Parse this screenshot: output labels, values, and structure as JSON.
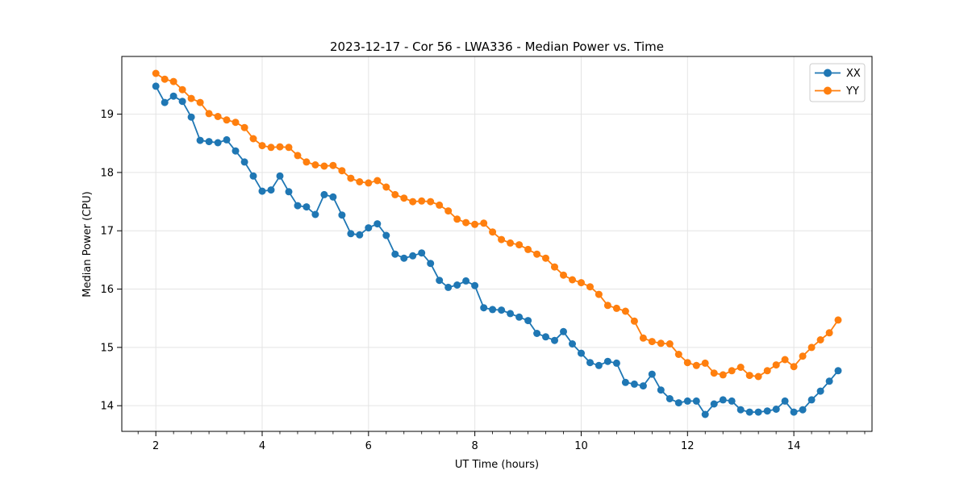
{
  "chart_data": {
    "type": "line",
    "title": "2023-12-17 - Cor 56 - LWA336 - Median Power vs. Time",
    "xlabel": "UT Time (hours)",
    "ylabel": "Median Power (CPU)",
    "xlim": [
      1.36,
      15.47
    ],
    "ylim": [
      13.56,
      19.99
    ],
    "xticks": [
      2,
      4,
      6,
      8,
      10,
      12,
      14
    ],
    "yticks": [
      14,
      15,
      16,
      17,
      18,
      19
    ],
    "x_minor_step": 0.33333,
    "grid": true,
    "grid_color": "#e4e4e4",
    "legend_position": "upper right",
    "x": [
      2.0,
      2.167,
      2.333,
      2.5,
      2.667,
      2.833,
      3.0,
      3.167,
      3.333,
      3.5,
      3.667,
      3.833,
      4.0,
      4.167,
      4.333,
      4.5,
      4.667,
      4.833,
      5.0,
      5.167,
      5.333,
      5.5,
      5.667,
      5.833,
      6.0,
      6.167,
      6.333,
      6.5,
      6.667,
      6.833,
      7.0,
      7.167,
      7.333,
      7.5,
      7.667,
      7.833,
      8.0,
      8.167,
      8.333,
      8.5,
      8.667,
      8.833,
      9.0,
      9.167,
      9.333,
      9.5,
      9.667,
      9.833,
      10.0,
      10.167,
      10.333,
      10.5,
      10.667,
      10.833,
      11.0,
      11.167,
      11.333,
      11.5,
      11.667,
      11.833,
      12.0,
      12.167,
      12.333,
      12.5,
      12.667,
      12.833,
      13.0,
      13.167,
      13.333,
      13.5,
      13.667,
      13.833,
      14.0,
      14.167,
      14.333,
      14.5,
      14.667,
      14.833
    ],
    "series": [
      {
        "name": "XX",
        "color": "#1f77b4",
        "values": [
          19.48,
          19.2,
          19.31,
          19.22,
          18.95,
          18.55,
          18.53,
          18.51,
          18.56,
          18.37,
          18.18,
          17.94,
          17.68,
          17.7,
          17.94,
          17.67,
          17.43,
          17.41,
          17.28,
          17.62,
          17.58,
          17.27,
          16.95,
          16.93,
          17.05,
          17.12,
          16.92,
          16.6,
          16.53,
          16.57,
          16.62,
          16.44,
          16.15,
          16.03,
          16.07,
          16.14,
          16.06,
          15.68,
          15.65,
          15.64,
          15.58,
          15.52,
          15.46,
          15.24,
          15.18,
          15.12,
          15.27,
          15.06,
          14.9,
          14.74,
          14.69,
          14.76,
          14.73,
          14.4,
          14.37,
          14.34,
          14.54,
          14.27,
          14.12,
          14.05,
          14.08,
          14.08,
          13.85,
          14.03,
          14.1,
          14.08,
          13.93,
          13.89,
          13.89,
          13.91,
          13.94,
          14.08,
          13.89,
          13.93,
          14.1,
          14.25,
          14.42,
          14.6
        ]
      },
      {
        "name": "YY",
        "color": "#ff7f0e",
        "values": [
          19.7,
          19.6,
          19.56,
          19.42,
          19.27,
          19.2,
          19.01,
          18.96,
          18.9,
          18.86,
          18.77,
          18.58,
          18.46,
          18.43,
          18.44,
          18.43,
          18.29,
          18.18,
          18.13,
          18.11,
          18.12,
          18.03,
          17.9,
          17.84,
          17.82,
          17.86,
          17.75,
          17.62,
          17.56,
          17.5,
          17.51,
          17.5,
          17.44,
          17.34,
          17.2,
          17.14,
          17.11,
          17.13,
          16.98,
          16.85,
          16.79,
          16.76,
          16.68,
          16.6,
          16.53,
          16.38,
          16.24,
          16.16,
          16.11,
          16.04,
          15.91,
          15.72,
          15.67,
          15.62,
          15.45,
          15.16,
          15.1,
          15.07,
          15.06,
          14.88,
          14.74,
          14.69,
          14.73,
          14.56,
          14.53,
          14.6,
          14.66,
          14.52,
          14.5,
          14.6,
          14.7,
          14.79,
          14.67,
          14.85,
          15.0,
          15.13,
          15.25,
          15.47
        ]
      }
    ]
  }
}
